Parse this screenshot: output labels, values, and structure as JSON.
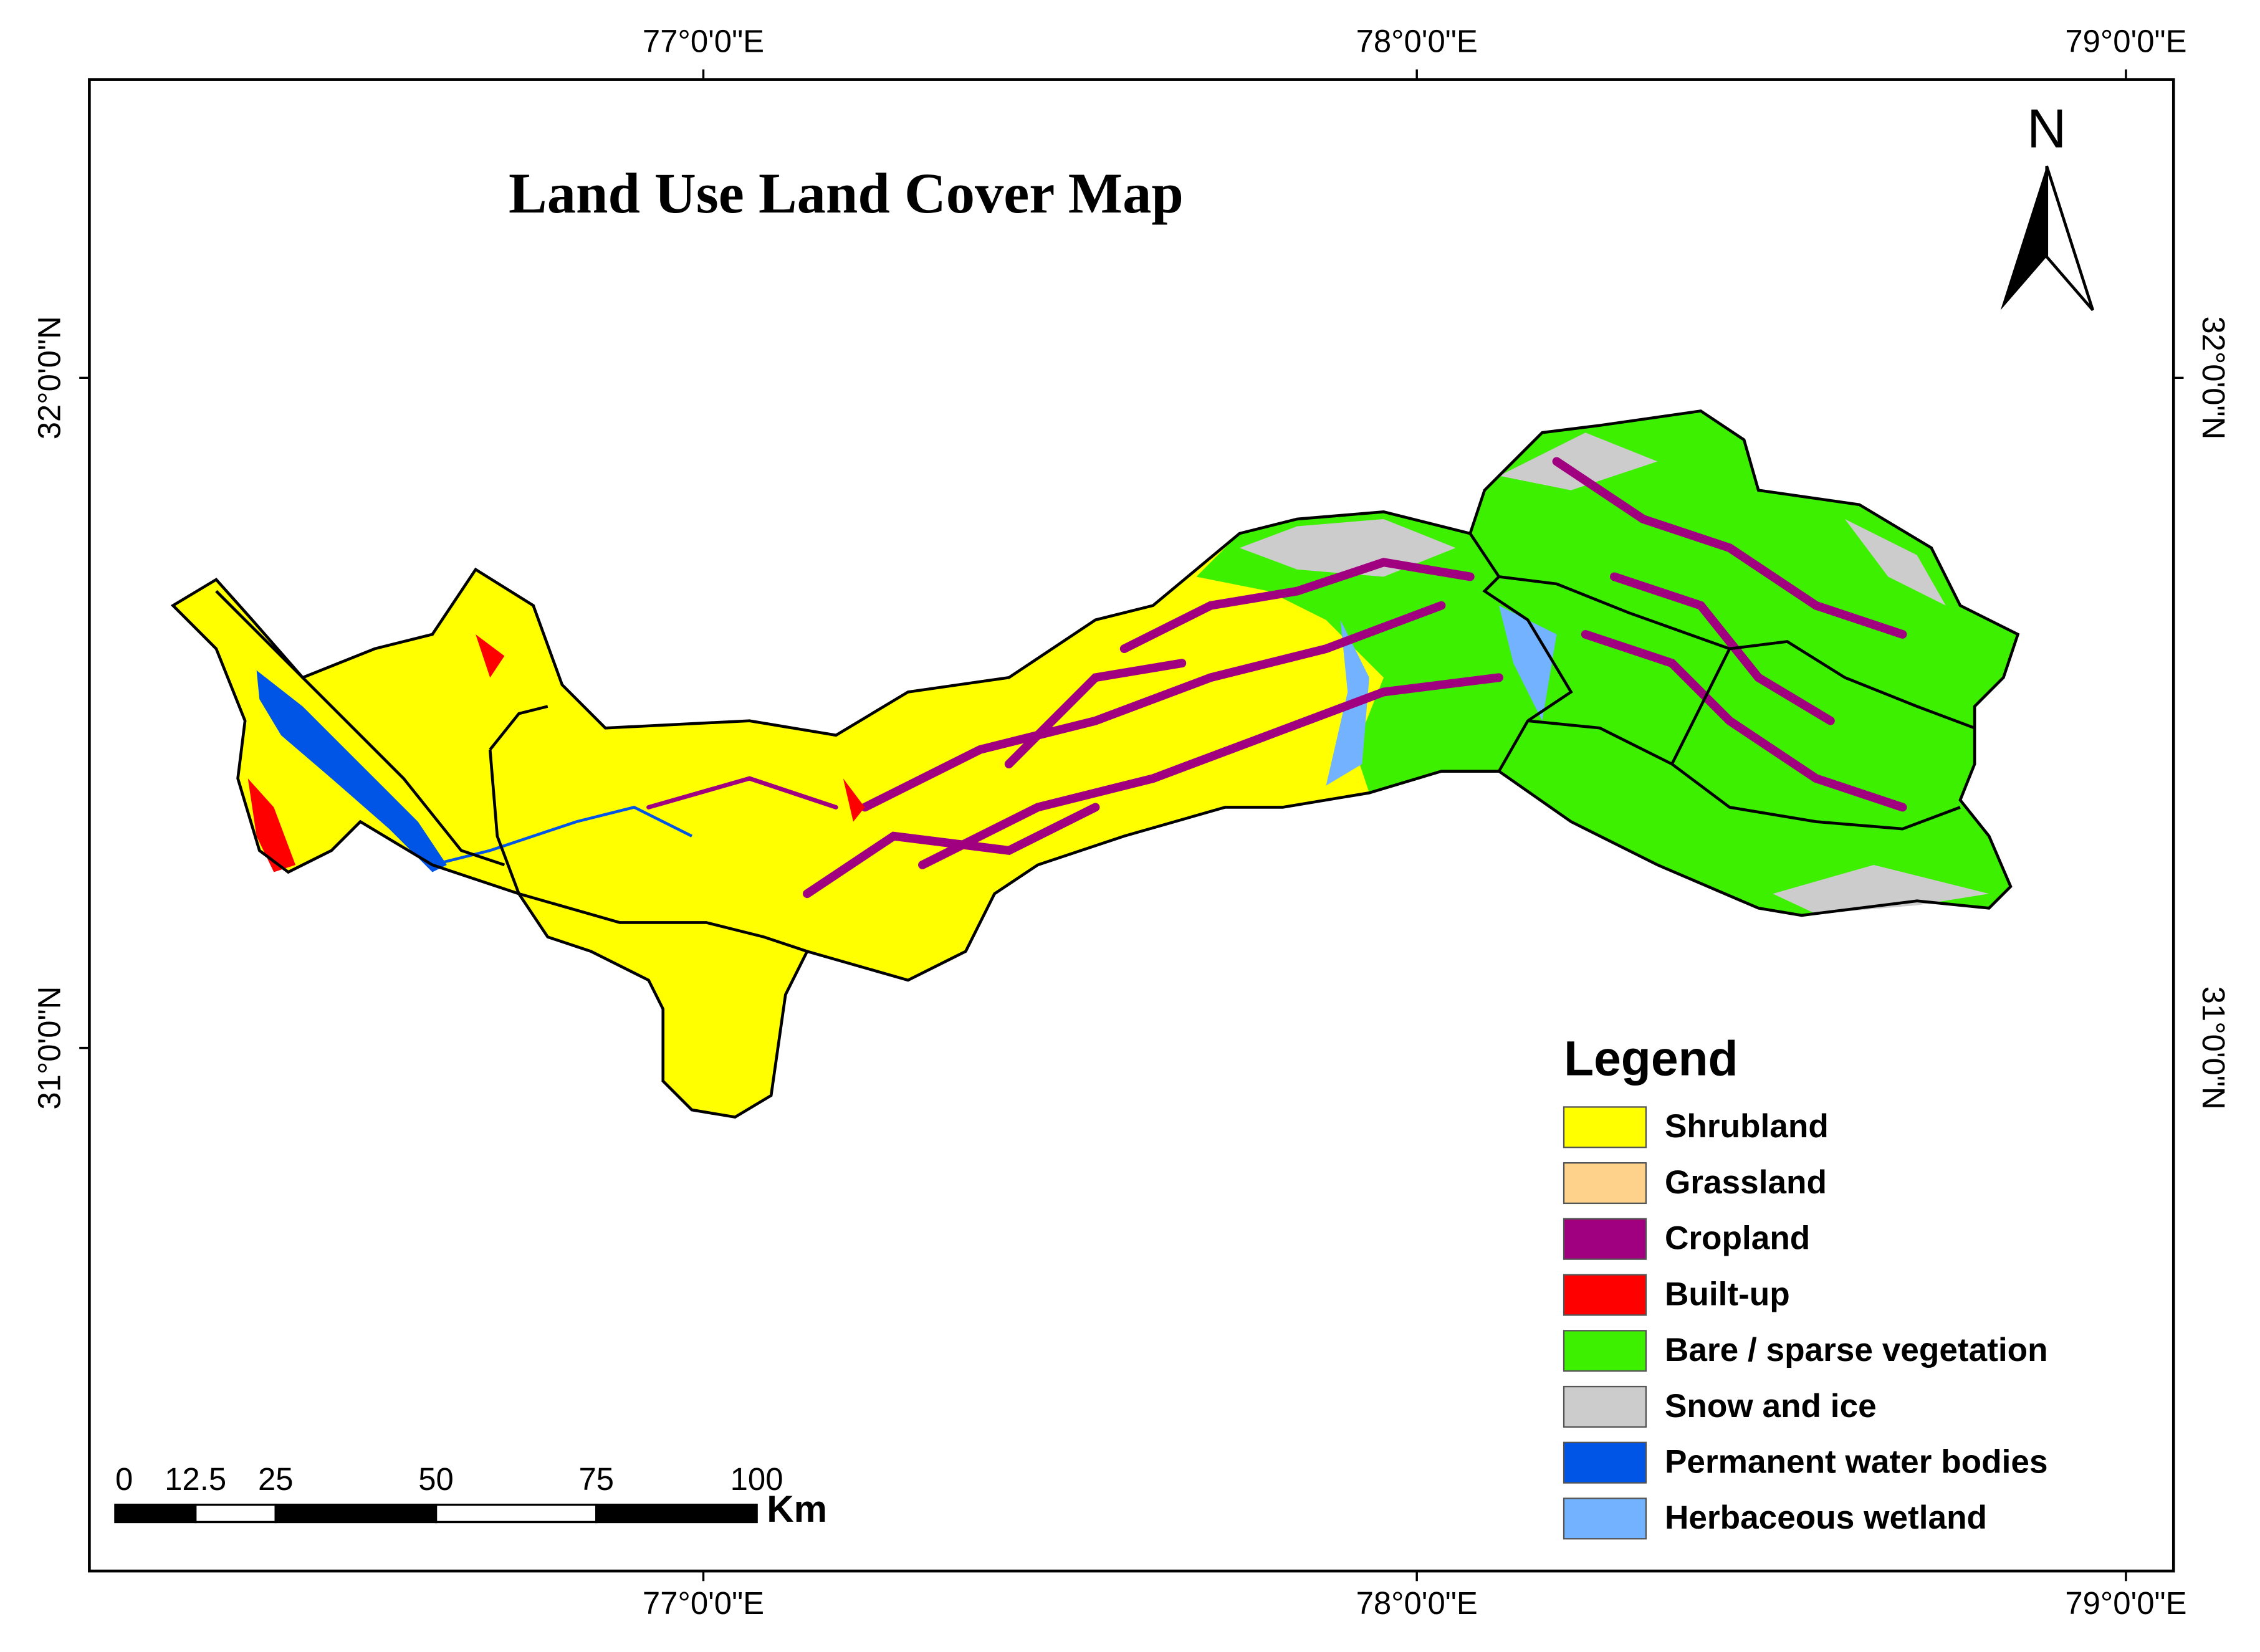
{
  "title": "Land Use Land Cover Map",
  "north_label": "N",
  "longitude_labels": {
    "top": [
      "77°0'0\"E",
      "78°0'0\"E",
      "79°0'0\"E"
    ],
    "bottom": [
      "77°0'0\"E",
      "78°0'0\"E",
      "79°0'0\"E"
    ]
  },
  "latitude_labels": {
    "left": [
      "32°0'0\"N",
      "31°0'0\"N"
    ],
    "right": [
      "32°0'0\"N",
      "31°0'0\"N"
    ]
  },
  "legend": {
    "title": "Legend",
    "items": [
      {
        "label": "Shrubland",
        "color": "#ffff00"
      },
      {
        "label": "Grassland",
        "color": "#ffd28c"
      },
      {
        "label": "Cropland",
        "color": "#a0007f"
      },
      {
        "label": "Built-up",
        "color": "#ff0000"
      },
      {
        "label": "Bare / sparse vegetation",
        "color": "#3cf000"
      },
      {
        "label": "Snow and ice",
        "color": "#cccccc"
      },
      {
        "label": "Permanent water bodies",
        "color": "#0055e6"
      },
      {
        "label": "Herbaceous wetland",
        "color": "#73b2ff"
      }
    ]
  },
  "scale_bar": {
    "ticks": [
      0,
      12.5,
      25,
      50,
      75,
      100
    ],
    "unit": "Km"
  }
}
